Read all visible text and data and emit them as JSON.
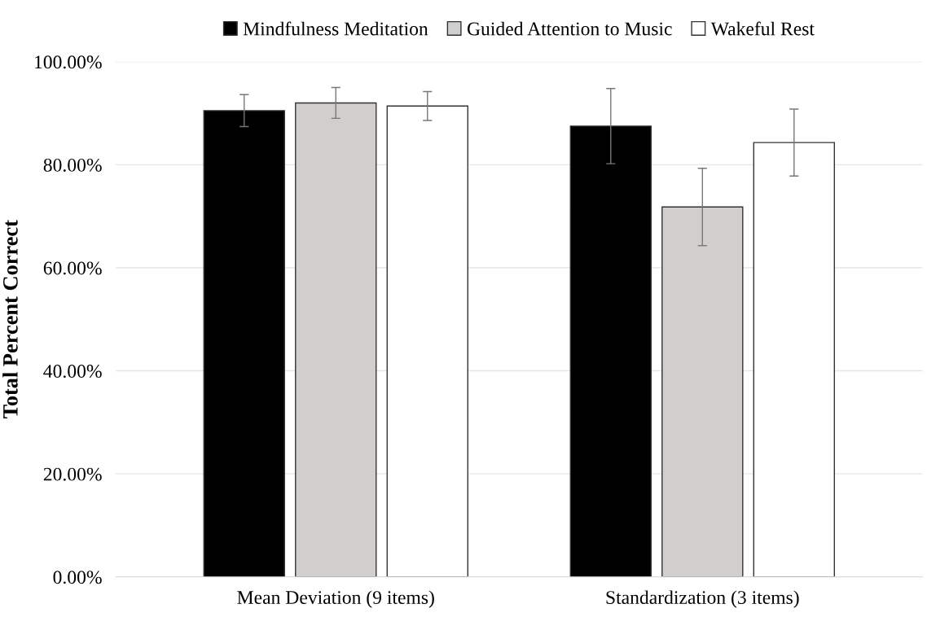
{
  "chart_data": {
    "type": "bar",
    "ylabel": "Total Percent Correct",
    "categories": [
      "Mean Deviation (9 items)",
      "Standardization (3 items)"
    ],
    "series": [
      {
        "name": "Mindfulness Meditation",
        "color": "#000000",
        "values": [
          90.5,
          87.5
        ],
        "errors": [
          3.1,
          7.3
        ]
      },
      {
        "name": "Guided Attention to Music",
        "color": "#d0cfcd",
        "values": [
          92.0,
          71.8
        ],
        "errors": [
          3.0,
          7.5
        ]
      },
      {
        "name": "Wakeful Rest",
        "color": "#ffffff",
        "values": [
          91.4,
          84.3
        ],
        "errors": [
          2.8,
          6.5
        ]
      }
    ],
    "ylim": [
      0,
      100
    ],
    "yticks": [
      {
        "value": 0,
        "label": "0.00%"
      },
      {
        "value": 20,
        "label": "20.00%"
      },
      {
        "value": 40,
        "label": "40.00%"
      },
      {
        "value": 60,
        "label": "60.00%"
      },
      {
        "value": 80,
        "label": "80.00%"
      },
      {
        "value": 100,
        "label": "100.00%"
      }
    ],
    "grid": "y",
    "legend": "top"
  }
}
